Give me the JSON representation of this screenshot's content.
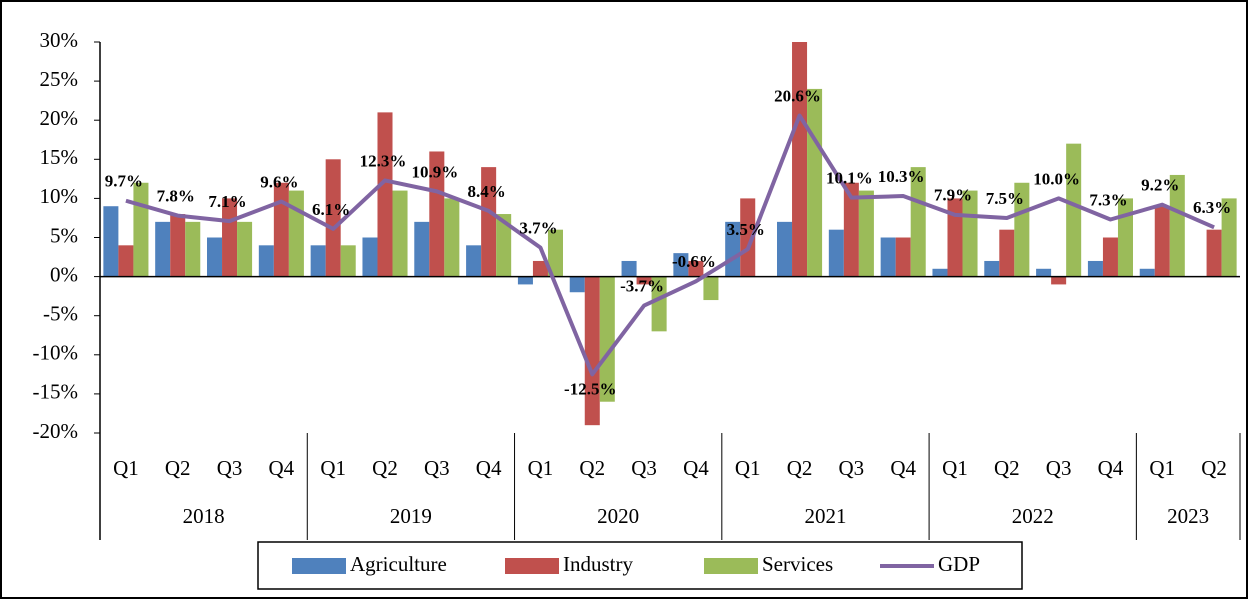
{
  "chart_data": {
    "type": "bar_line",
    "categories": [
      "Q1",
      "Q2",
      "Q3",
      "Q4",
      "Q1",
      "Q2",
      "Q3",
      "Q4",
      "Q1",
      "Q2",
      "Q3",
      "Q4",
      "Q1",
      "Q2",
      "Q3",
      "Q4",
      "Q1",
      "Q2",
      "Q3",
      "Q4",
      "Q1",
      "Q2"
    ],
    "year_groups": [
      {
        "label": "2018",
        "span": 4
      },
      {
        "label": "2019",
        "span": 4
      },
      {
        "label": "2020",
        "span": 4
      },
      {
        "label": "2021",
        "span": 4
      },
      {
        "label": "2022",
        "span": 4
      },
      {
        "label": "2023",
        "span": 2
      }
    ],
    "series": [
      {
        "name": "Agriculture",
        "type": "bar",
        "color": "#4f81bd",
        "values": [
          9,
          7,
          5,
          4,
          4,
          5,
          7,
          4,
          -1,
          -2,
          2,
          3,
          7,
          7,
          6,
          5,
          1,
          2,
          1,
          2,
          1,
          0
        ]
      },
      {
        "name": "Industry",
        "type": "bar",
        "color": "#c0504d",
        "values": [
          4,
          8,
          10,
          12,
          15,
          21,
          16,
          14,
          2,
          -19,
          -1,
          2,
          10,
          30,
          12,
          5,
          10,
          6,
          -1,
          5,
          9,
          6
        ]
      },
      {
        "name": "Services",
        "type": "bar",
        "color": "#9bbb59",
        "values": [
          12,
          7,
          7,
          11,
          4,
          11,
          10,
          8,
          6,
          -16,
          -7,
          -3,
          0,
          24,
          11,
          14,
          11,
          12,
          17,
          10,
          13,
          10
        ]
      },
      {
        "name": "GDP",
        "type": "line",
        "color": "#8064a2",
        "values": [
          9.7,
          7.8,
          7.1,
          9.6,
          6.1,
          12.3,
          10.9,
          8.4,
          3.7,
          -12.5,
          -3.7,
          -0.6,
          3.5,
          20.6,
          10.1,
          10.3,
          7.9,
          7.5,
          10.0,
          7.3,
          9.2,
          6.3
        ],
        "value_labels": [
          "9.7%",
          "7.8%",
          "7.1%",
          "9.6%",
          "6.1%",
          "12.3%",
          "10.9%",
          "8.4%",
          "3.7%",
          "-12.5%",
          "-3.7%",
          "-0.6%",
          "3.5%",
          "20.6%",
          "10.1%",
          "10.3%",
          "7.9%",
          "7.5%",
          "10.0%",
          "7.3%",
          "9.2%",
          "6.3%"
        ]
      }
    ],
    "ylim": [
      -20,
      30
    ],
    "yticks": [
      {
        "value": -20,
        "label": "-20%"
      },
      {
        "value": -15,
        "label": "-15%"
      },
      {
        "value": -10,
        "label": "-10%"
      },
      {
        "value": -5,
        "label": "-5%"
      },
      {
        "value": 0,
        "label": "0%"
      },
      {
        "value": 5,
        "label": "5%"
      },
      {
        "value": 10,
        "label": "10%"
      },
      {
        "value": 15,
        "label": "15%"
      },
      {
        "value": 20,
        "label": "20%"
      },
      {
        "value": 25,
        "label": "25%"
      },
      {
        "value": 30,
        "label": "30%"
      }
    ],
    "grid": false,
    "legend": "bottom"
  }
}
